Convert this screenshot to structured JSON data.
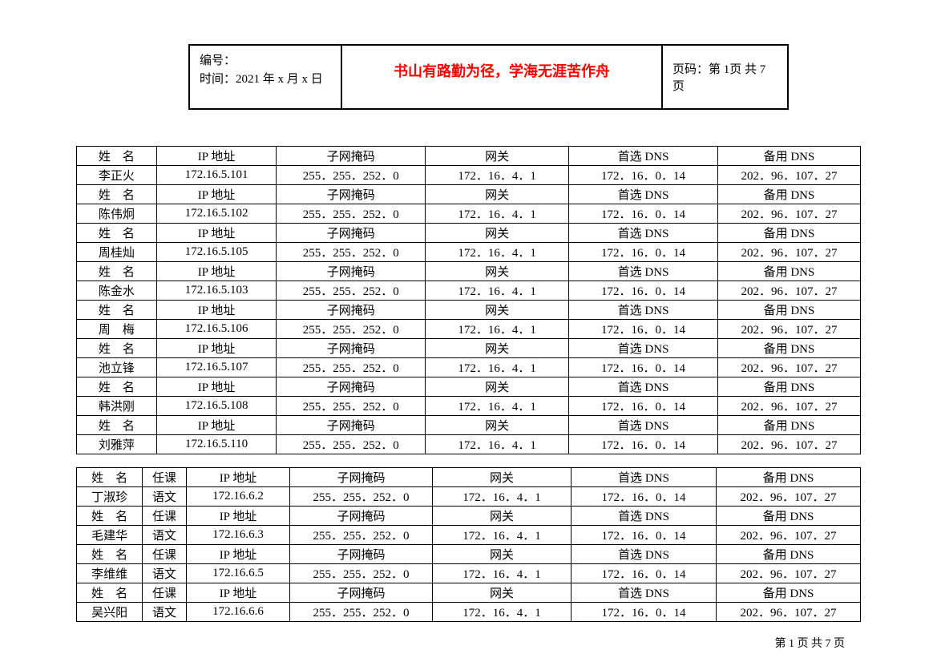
{
  "header": {
    "line1": "编号：",
    "line2": "时间：2021 年 x 月 x 日",
    "center": "书山有路勤为径，学海无涯苦作舟",
    "right": "页码：第 1页 共 7页"
  },
  "table1": {
    "headers": [
      "姓　名",
      "IP 地址",
      "子网掩码",
      "网关",
      "首选 DNS",
      "备用 DNS"
    ],
    "rows": [
      {
        "name": "李正火",
        "ip": "172.16.5.101",
        "mask": "255．255．252．0",
        "gw": "172．16．4．1",
        "dns1": "172．16．0．14",
        "dns2": "202．96．107．27"
      },
      {
        "name": "陈伟炯",
        "ip": "172.16.5.102",
        "mask": "255．255．252．0",
        "gw": "172．16．4．1",
        "dns1": "172．16．0．14",
        "dns2": "202．96．107．27"
      },
      {
        "name": "周桂灿",
        "ip": "172.16.5.105",
        "mask": "255．255．252．0",
        "gw": "172．16．4．1",
        "dns1": "172．16．0．14",
        "dns2": "202．96．107．27"
      },
      {
        "name": "陈金水",
        "ip": "172.16.5.103",
        "mask": "255．255．252．0",
        "gw": "172．16．4．1",
        "dns1": "172．16．0．14",
        "dns2": "202．96．107．27"
      },
      {
        "name": "周　梅",
        "ip": "172.16.5.106",
        "mask": "255．255．252．0",
        "gw": "172．16．4．1",
        "dns1": "172．16．0．14",
        "dns2": "202．96．107．27"
      },
      {
        "name": "池立锋",
        "ip": "172.16.5.107",
        "mask": "255．255．252．0",
        "gw": "172．16．4．1",
        "dns1": "172．16．0．14",
        "dns2": "202．96．107．27"
      },
      {
        "name": "韩洪刚",
        "ip": "172.16.5.108",
        "mask": "255．255．252．0",
        "gw": "172．16．4．1",
        "dns1": "172．16．0．14",
        "dns2": "202．96．107．27"
      },
      {
        "name": "刘雅萍",
        "ip": "172.16.5.110",
        "mask": "255．255．252．0",
        "gw": "172．16．4．1",
        "dns1": "172．16．0．14",
        "dns2": "202．96．107．27"
      }
    ]
  },
  "table2": {
    "headers": [
      "姓　名",
      "任课",
      "IP 地址",
      "子网掩码",
      "网关",
      "首选 DNS",
      "备用 DNS"
    ],
    "rows": [
      {
        "name": "丁淑珍",
        "course": "语文",
        "ip": "172.16.6.2",
        "mask": "255．255．252．0",
        "gw": "172．16．4．1",
        "dns1": "172．16．0．14",
        "dns2": "202．96．107．27"
      },
      {
        "name": "毛建华",
        "course": "语文",
        "ip": "172.16.6.3",
        "mask": "255．255．252．0",
        "gw": "172．16．4．1",
        "dns1": "172．16．0．14",
        "dns2": "202．96．107．27"
      },
      {
        "name": "李维维",
        "course": "语文",
        "ip": "172.16.6.5",
        "mask": "255．255．252．0",
        "gw": "172．16．4．1",
        "dns1": "172．16．0．14",
        "dns2": "202．96．107．27"
      },
      {
        "name": "吴兴阳",
        "course": "语文",
        "ip": "172.16.6.6",
        "mask": "255．255．252．0",
        "gw": "172．16．4．1",
        "dns1": "172．16．0．14",
        "dns2": "202．96．107．27"
      }
    ]
  },
  "footer": "第 1 页 共 7 页"
}
